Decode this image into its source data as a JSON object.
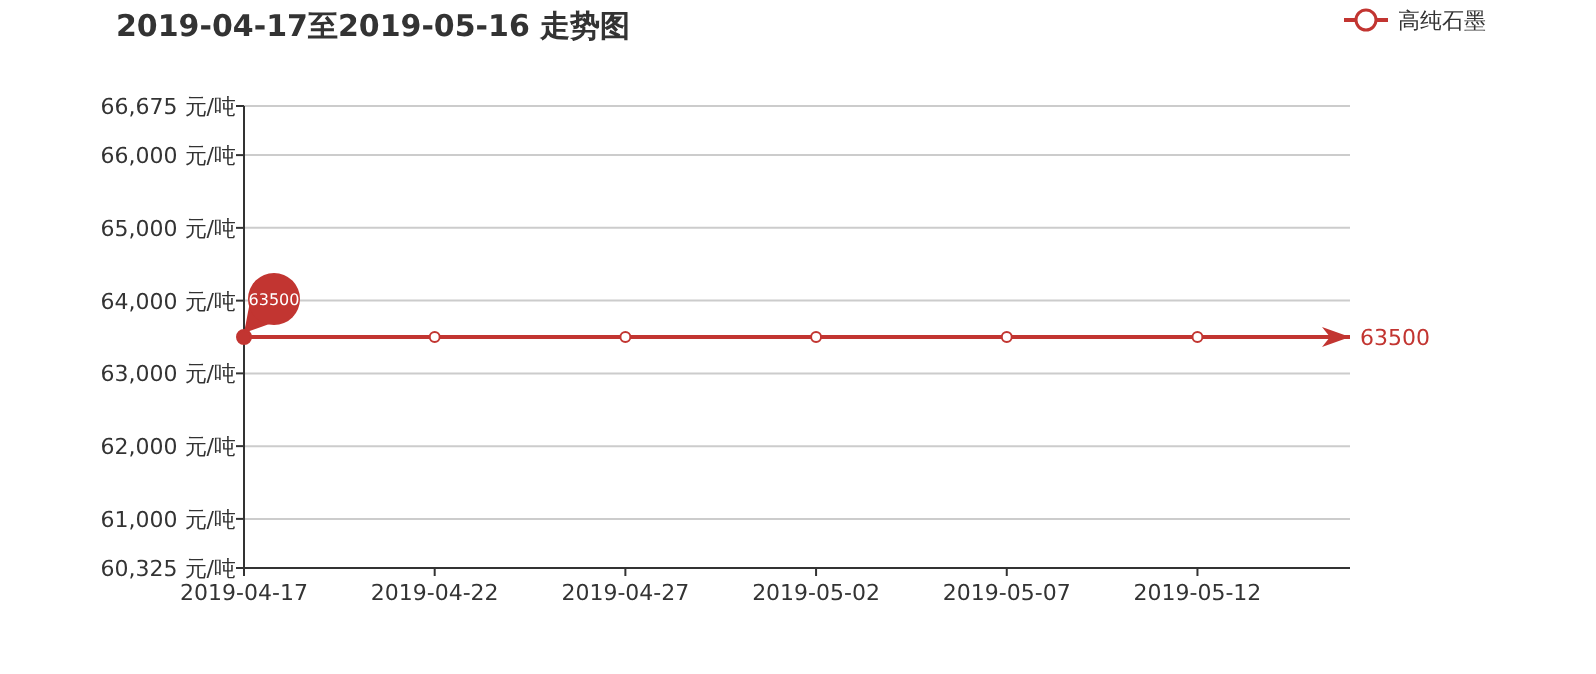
{
  "chart_data": {
    "type": "line",
    "title": "2019-04-17至2019-05-16 走势图",
    "x": [
      "2019-04-17",
      "2019-04-22",
      "2019-04-27",
      "2019-05-02",
      "2019-05-07",
      "2019-05-12",
      "2019-05-16"
    ],
    "series": [
      {
        "name": "高纯石墨",
        "color": "#c23531",
        "values": [
          63500,
          63500,
          63500,
          63500,
          63500,
          63500,
          63500
        ],
        "value_labels": [
          "63500",
          null,
          null,
          null,
          null,
          null,
          "63500"
        ]
      }
    ],
    "xlim": [
      "2019-04-17",
      "2019-05-16"
    ],
    "xticks": [
      {
        "value": "2019-04-17",
        "label": "2019-04-17"
      },
      {
        "value": "2019-04-22",
        "label": "2019-04-22"
      },
      {
        "value": "2019-04-27",
        "label": "2019-04-27"
      },
      {
        "value": "2019-05-02",
        "label": "2019-05-02"
      },
      {
        "value": "2019-05-07",
        "label": "2019-05-07"
      },
      {
        "value": "2019-05-12",
        "label": "2019-05-12"
      }
    ],
    "ylim": [
      60325,
      66675
    ],
    "yticks": [
      {
        "value": 60325,
        "label": "60,325 元/吨"
      },
      {
        "value": 61000,
        "label": "61,000 元/吨"
      },
      {
        "value": 62000,
        "label": "62,000 元/吨"
      },
      {
        "value": 63000,
        "label": "63,000 元/吨"
      },
      {
        "value": 64000,
        "label": "64,000 元/吨"
      },
      {
        "value": 65000,
        "label": "65,000 元/吨"
      },
      {
        "value": 66000,
        "label": "66,000 元/吨"
      },
      {
        "value": 66675,
        "label": "66,675 元/吨"
      }
    ],
    "grid": "y",
    "legend": "top right",
    "marker": "circle"
  }
}
